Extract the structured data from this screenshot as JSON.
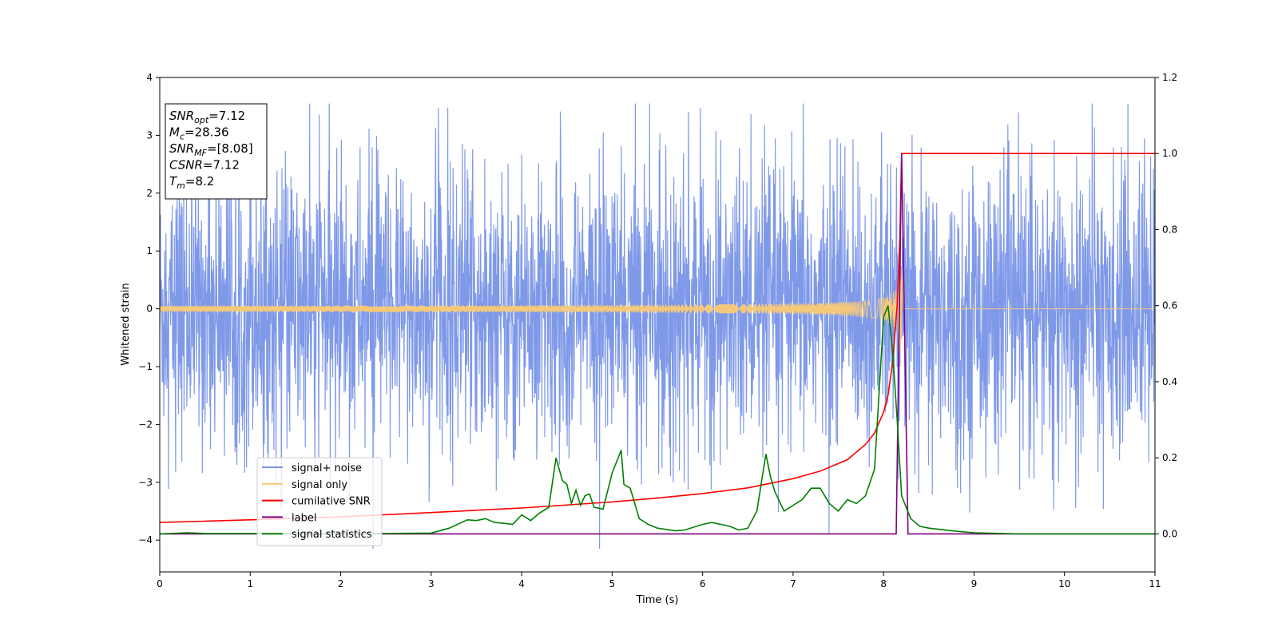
{
  "chart_data": {
    "type": "line",
    "xlabel": "Time (s)",
    "ylabel": "Whitened strain",
    "xlim": [
      0,
      11
    ],
    "ylim_left": [
      -4.55,
      4.0
    ],
    "ylim_right": [
      -0.1,
      1.2
    ],
    "xticks": [
      "0",
      "1",
      "2",
      "3",
      "4",
      "5",
      "6",
      "7",
      "8",
      "9",
      "10",
      "11"
    ],
    "yticks_left": [
      "4",
      "3",
      "2",
      "1",
      "0",
      "−1",
      "−2",
      "−3",
      "−4"
    ],
    "yticks_left_values": [
      4,
      3,
      2,
      1,
      0,
      -1,
      -2,
      -3,
      -4
    ],
    "yticks_right": [
      "1.2",
      "1.0",
      "0.8",
      "0.6",
      "0.4",
      "0.2",
      "0.0"
    ],
    "yticks_right_values": [
      1.2,
      1.0,
      0.8,
      0.6,
      0.4,
      0.2,
      0.0
    ],
    "grid": false,
    "legend_placement": "lower-left",
    "annotation": {
      "lines": [
        {
          "base": "SNR",
          "sub": "opt",
          "rest": "=7.12"
        },
        {
          "base": "M",
          "sub": "c",
          "rest": "=28.36"
        },
        {
          "base": "SNR",
          "sub": "MF",
          "rest": "=[8.08]"
        },
        {
          "base": "CSNR",
          "sub": "",
          "rest": "=7.12"
        },
        {
          "base": "T",
          "sub": "m",
          "rest": "=8.2"
        }
      ]
    },
    "series": [
      {
        "name": "signal+ noise",
        "axis": "left",
        "color": "#7893e8",
        "kind": "noise",
        "envelope_typical": 1.5,
        "spike_max": 3.55,
        "spike_min": -4.15
      },
      {
        "name": "signal only",
        "axis": "left",
        "color": "#f5c97a",
        "kind": "chirp",
        "merger_time": 8.2,
        "peak_amplitude": 0.75
      },
      {
        "name": "cumilative SNR",
        "axis": "right",
        "color": "#ff0000",
        "x": [
          0,
          1,
          2,
          3,
          4,
          5,
          5.5,
          6,
          6.5,
          7,
          7.3,
          7.6,
          7.8,
          7.9,
          8.0,
          8.05,
          8.1,
          8.15,
          8.18,
          8.2,
          11
        ],
        "y": [
          0.03,
          0.037,
          0.045,
          0.056,
          0.068,
          0.084,
          0.094,
          0.106,
          0.121,
          0.145,
          0.165,
          0.195,
          0.235,
          0.265,
          0.32,
          0.365,
          0.45,
          0.6,
          0.78,
          1.0,
          1.0
        ]
      },
      {
        "name": "label",
        "axis": "right",
        "color": "#800080",
        "x": [
          0,
          8.14,
          8.2,
          8.27,
          11
        ],
        "y": [
          0,
          0,
          1.0,
          0,
          0
        ]
      },
      {
        "name": "signal statistics",
        "axis": "right",
        "color": "#008000",
        "x": [
          0,
          0.3,
          0.5,
          1,
          2,
          3,
          3.2,
          3.4,
          3.5,
          3.6,
          3.7,
          3.8,
          3.9,
          4.0,
          4.1,
          4.2,
          4.3,
          4.38,
          4.45,
          4.5,
          4.55,
          4.6,
          4.65,
          4.7,
          4.75,
          4.8,
          4.9,
          5.0,
          5.1,
          5.13,
          5.2,
          5.3,
          5.4,
          5.5,
          5.7,
          5.8,
          6.0,
          6.1,
          6.3,
          6.4,
          6.5,
          6.6,
          6.7,
          6.75,
          6.8,
          6.9,
          7.0,
          7.1,
          7.2,
          7.3,
          7.4,
          7.5,
          7.6,
          7.7,
          7.8,
          7.9,
          8.0,
          8.05,
          8.1,
          8.15,
          8.2,
          8.3,
          8.4,
          8.5,
          8.8,
          9.0,
          9.5,
          10,
          11
        ],
        "y": [
          0,
          0.003,
          0.001,
          0.001,
          0,
          0.002,
          0.015,
          0.037,
          0.035,
          0.04,
          0.03,
          0.028,
          0.025,
          0.05,
          0.035,
          0.055,
          0.07,
          0.2,
          0.14,
          0.13,
          0.08,
          0.115,
          0.075,
          0.1,
          0.105,
          0.07,
          0.065,
          0.16,
          0.22,
          0.13,
          0.12,
          0.04,
          0.025,
          0.015,
          0.008,
          0.01,
          0.025,
          0.03,
          0.02,
          0.01,
          0.015,
          0.06,
          0.21,
          0.15,
          0.11,
          0.06,
          0.075,
          0.09,
          0.12,
          0.12,
          0.08,
          0.06,
          0.09,
          0.08,
          0.1,
          0.17,
          0.57,
          0.6,
          0.48,
          0.3,
          0.1,
          0.04,
          0.02,
          0.015,
          0.007,
          0.003,
          0.0,
          0.0,
          0.0
        ]
      }
    ]
  }
}
